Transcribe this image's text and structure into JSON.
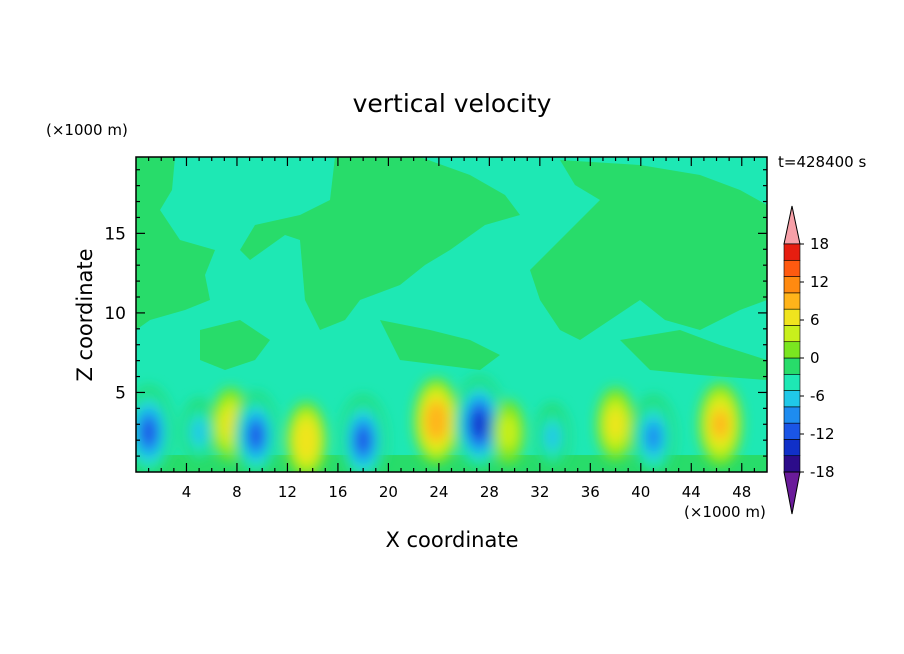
{
  "chart_data": {
    "type": "heatmap",
    "title": "vertical velocity",
    "xlabel": "X coordinate",
    "ylabel": "Z coordinate",
    "x_unit": "(×1000 m)",
    "y_unit": "(×1000 m)",
    "time_label": "t=428400 s",
    "xlim": [
      0,
      50
    ],
    "ylim": [
      0,
      19.8
    ],
    "x_ticks": [
      4,
      8,
      12,
      16,
      20,
      24,
      28,
      32,
      36,
      40,
      44,
      48
    ],
    "y_ticks": [
      5,
      10,
      15
    ],
    "colorbar": {
      "levels": [
        -21,
        -18,
        -15,
        -12,
        -9,
        -6,
        -3,
        0,
        3,
        6,
        9,
        12,
        15,
        18,
        21
      ],
      "labels": [
        18,
        12,
        6,
        0,
        -6,
        -12,
        -18
      ],
      "colors": [
        "#6a1b9a",
        "#2c0c8a",
        "#1030c8",
        "#1a55e6",
        "#1e8cf0",
        "#20c8e8",
        "#1ee8b4",
        "#28dc6a",
        "#7ae620",
        "#c8f01c",
        "#f0e41e",
        "#ffb41a",
        "#ff8a10",
        "#ff5a10",
        "#e61e10",
        "#f7a0a8"
      ]
    },
    "features": [
      {
        "x": 1,
        "z": 2.5,
        "value": -14
      },
      {
        "x": 5,
        "z": 2.5,
        "value": -6
      },
      {
        "x": 7.5,
        "z": 3,
        "value": 8
      },
      {
        "x": 9.5,
        "z": 2.3,
        "value": -12
      },
      {
        "x": 13.5,
        "z": 2,
        "value": 9
      },
      {
        "x": 18,
        "z": 2,
        "value": -13
      },
      {
        "x": 23.8,
        "z": 3.2,
        "value": 12
      },
      {
        "x": 27.2,
        "z": 3,
        "value": -15
      },
      {
        "x": 29.5,
        "z": 2.5,
        "value": 5
      },
      {
        "x": 33,
        "z": 2.2,
        "value": -6
      },
      {
        "x": 38,
        "z": 3,
        "value": 8
      },
      {
        "x": 41,
        "z": 2.2,
        "value": -11
      },
      {
        "x": 46.3,
        "z": 3,
        "value": 11
      }
    ]
  }
}
